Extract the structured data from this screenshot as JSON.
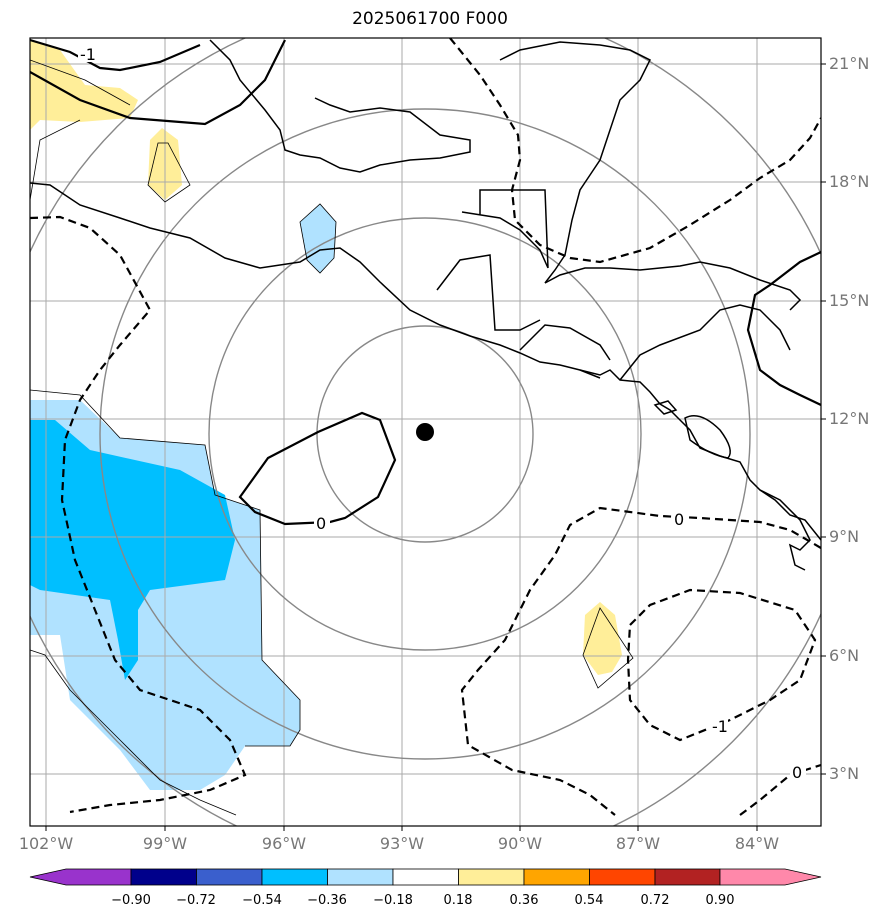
{
  "title": "2025061700 F000",
  "lat_labels": [
    "21°N",
    "18°N",
    "15°N",
    "12°N",
    "9°N",
    "6°N",
    "3°N"
  ],
  "lon_labels": [
    "102°W",
    "99°W",
    "96°W",
    "93°W",
    "90°W",
    "87°W",
    "84°W"
  ],
  "colorbar": {
    "ticks": [
      "−0.90",
      "−0.72",
      "−0.54",
      "−0.36",
      "−0.18",
      "0.18",
      "0.36",
      "0.54",
      "0.72",
      "0.90"
    ],
    "colors": [
      "#9933cc",
      "#00008b",
      "#3a5fcd",
      "#00bfff",
      "#b0e2ff",
      "#ffffff",
      "#ffee99",
      "#ffa500",
      "#ff4500",
      "#b22222",
      "#ff88aa"
    ]
  },
  "contour_labels": [
    "0",
    "0",
    "0",
    "-1",
    "-1"
  ],
  "colors": {
    "positive_fill": "#ffee99",
    "negative_light": "#b0e2ff",
    "negative_strong": "#00bfff",
    "grid": "#aaaaaa",
    "range_ring": "#888888"
  }
}
